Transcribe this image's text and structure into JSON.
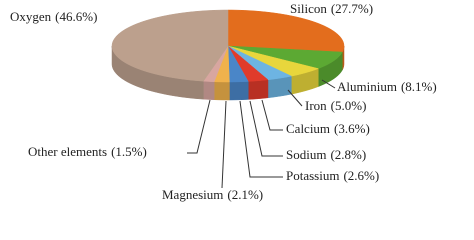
{
  "chart_data": {
    "type": "pie3d",
    "categories": [
      "Oxygen",
      "Silicon",
      "Aluminium",
      "Iron",
      "Calcium",
      "Sodium",
      "Potassium",
      "Magnesium",
      "Other elements"
    ],
    "values": [
      46.6,
      27.7,
      8.1,
      5.0,
      3.6,
      2.8,
      2.6,
      2.1,
      1.5
    ],
    "value_labels": [
      "(46.6%)",
      "(27.7%)",
      "(8.1%)",
      "(5.0%)",
      "(3.6%)",
      "(2.8%)",
      "(2.6%)",
      "(2.1%)",
      "(1.5%)"
    ],
    "colors": [
      "#bca08d",
      "#e36d1d",
      "#5ca933",
      "#e8d63c",
      "#6db4e2",
      "#e03b2b",
      "#4a86c8",
      "#f0b24c",
      "#d8a6a0"
    ]
  }
}
